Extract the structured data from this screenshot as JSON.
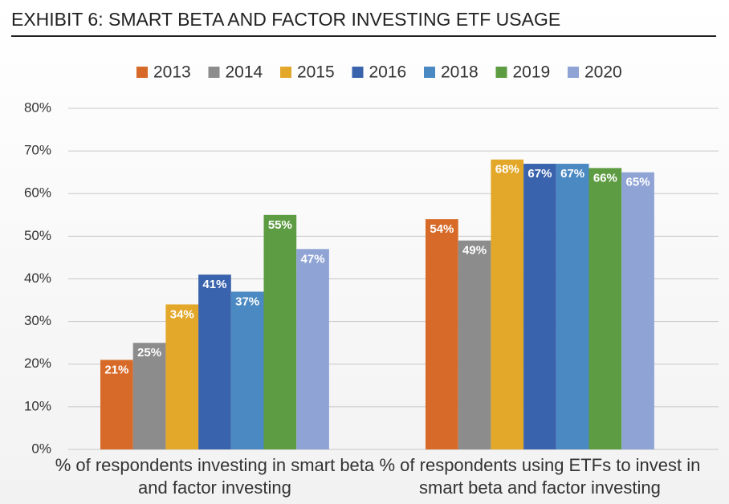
{
  "chart_data": {
    "type": "bar",
    "title": "EXHIBIT 6: SMART BETA AND FACTOR INVESTING ETF USAGE",
    "categories": [
      "% of respondents investing in smart beta and factor investing",
      "% of respondents using ETFs to invest in smart beta and factor investing"
    ],
    "series": [
      {
        "name": "2013",
        "color": "#d76a28",
        "values": [
          21,
          54
        ],
        "value_labels": [
          "21%",
          "54%"
        ]
      },
      {
        "name": "2014",
        "color": "#8c8c8c",
        "values": [
          25,
          49
        ],
        "value_labels": [
          "25%",
          "49%"
        ]
      },
      {
        "name": "2015",
        "color": "#e3a82a",
        "values": [
          34,
          68
        ],
        "value_labels": [
          "34%",
          "68%"
        ]
      },
      {
        "name": "2016",
        "color": "#3a63ad",
        "values": [
          41,
          67
        ],
        "value_labels": [
          "41%",
          "67%"
        ]
      },
      {
        "name": "2018",
        "color": "#4a89c2",
        "values": [
          37,
          67
        ],
        "value_labels": [
          "37%",
          "67%"
        ]
      },
      {
        "name": "2019",
        "color": "#5e9c43",
        "values": [
          55,
          66
        ],
        "value_labels": [
          "55%",
          "66%"
        ]
      },
      {
        "name": "2020",
        "color": "#8fa3d5",
        "values": [
          47,
          65
        ],
        "value_labels": [
          "47%",
          "65%"
        ]
      }
    ],
    "ylim": [
      0,
      80
    ],
    "yticks": [
      {
        "value": 0,
        "label": "0%"
      },
      {
        "value": 10,
        "label": "10%"
      },
      {
        "value": 20,
        "label": "20%"
      },
      {
        "value": 30,
        "label": "30%"
      },
      {
        "value": 40,
        "label": "40%"
      },
      {
        "value": 50,
        "label": "50%"
      },
      {
        "value": 60,
        "label": "60%"
      },
      {
        "value": 70,
        "label": "70%"
      },
      {
        "value": 80,
        "label": "80%"
      }
    ],
    "grid": true,
    "legend": "top"
  }
}
